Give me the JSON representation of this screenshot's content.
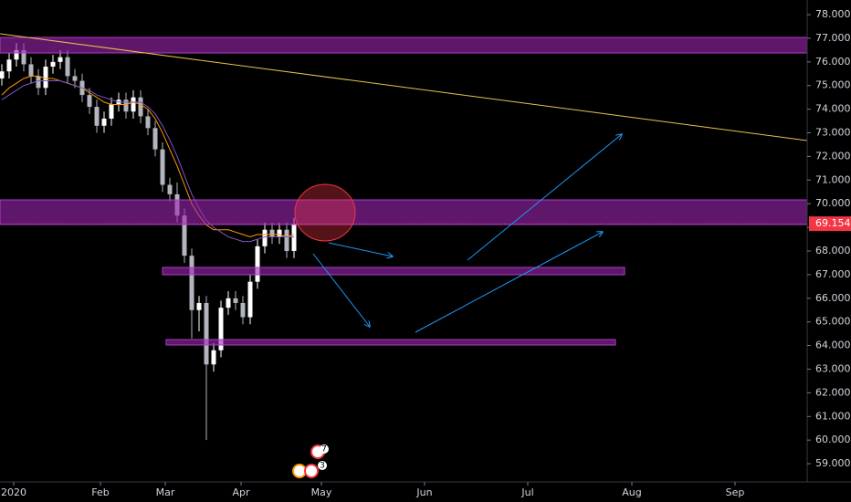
{
  "chart_data": {
    "type": "candlestick",
    "x": [
      0.5,
      2.5,
      4.5,
      6.5,
      8.5,
      10.5,
      12.5,
      14.5,
      16.5,
      18.5,
      20.5,
      22.5,
      24.5,
      26.5,
      28.5,
      30.5,
      32.5,
      34.5,
      36.5,
      38.5,
      40.5,
      42.5,
      44.5,
      46.5,
      48.5,
      50.5,
      52.5,
      54.5,
      56.5,
      58.5,
      60.5,
      62.5,
      64.5,
      66.5,
      68.5,
      70.5,
      72.5,
      74.5,
      76.5,
      78.5,
      80.5
    ],
    "open": [
      75.3,
      75.6,
      76.1,
      76.5,
      75.9,
      75.4,
      74.9,
      75.8,
      76.0,
      76.2,
      75.4,
      75.2,
      74.6,
      74.1,
      73.3,
      73.6,
      74.2,
      74.4,
      73.9,
      74.5,
      73.7,
      73.2,
      72.3,
      70.8,
      70.4,
      69.5,
      67.8,
      65.5,
      65.8,
      63.2,
      63.8,
      65.6,
      66.0,
      65.8,
      65.2,
      66.7,
      68.2,
      68.9,
      68.6,
      68.9,
      68.0
    ],
    "high": [
      75.9,
      76.4,
      76.8,
      76.8,
      76.2,
      75.7,
      76.1,
      76.3,
      76.5,
      76.5,
      75.7,
      75.5,
      74.9,
      74.4,
      73.9,
      74.5,
      74.7,
      74.7,
      74.8,
      74.8,
      74.0,
      73.5,
      72.6,
      71.1,
      70.9,
      69.8,
      68.1,
      66.1,
      66.1,
      64.1,
      65.9,
      66.3,
      66.3,
      66.1,
      67.0,
      68.5,
      69.2,
      69.2,
      69.2,
      69.2,
      69.4
    ],
    "low": [
      75.0,
      75.3,
      75.8,
      75.6,
      75.1,
      74.6,
      74.6,
      75.5,
      75.7,
      75.1,
      74.9,
      74.3,
      73.8,
      73.0,
      73.0,
      73.3,
      73.9,
      73.6,
      73.6,
      73.4,
      72.9,
      72.0,
      70.5,
      70.1,
      69.2,
      67.5,
      64.3,
      64.6,
      60.0,
      62.9,
      63.5,
      65.3,
      65.5,
      64.9,
      64.9,
      66.4,
      67.9,
      68.3,
      68.3,
      67.7,
      67.7
    ],
    "close": [
      75.6,
      76.1,
      76.5,
      75.9,
      75.4,
      74.9,
      75.8,
      76.0,
      76.2,
      75.4,
      75.2,
      74.6,
      74.1,
      73.3,
      73.6,
      74.2,
      74.4,
      73.9,
      74.5,
      73.7,
      73.2,
      72.3,
      70.8,
      70.4,
      69.5,
      67.8,
      65.5,
      65.8,
      63.2,
      63.8,
      65.6,
      66.0,
      65.8,
      65.2,
      66.7,
      68.2,
      68.9,
      68.6,
      68.9,
      68.0,
      69.154
    ],
    "up_color": "#ffffff",
    "down_color": "#b2b5be",
    "overlays": [
      {
        "color": "#ff9800",
        "values": [
          74.6,
          74.9,
          75.1,
          75.3,
          75.4,
          75.4,
          75.3,
          75.3,
          75.2,
          75.1,
          75.0,
          74.9,
          74.7,
          74.5,
          74.3,
          74.2,
          74.2,
          74.2,
          74.3,
          74.2,
          74.0,
          73.6,
          73.0,
          72.3,
          71.6,
          70.8,
          70.0,
          69.5,
          69.1,
          68.9,
          68.9,
          68.9,
          68.8,
          68.7,
          68.6,
          68.7,
          68.7,
          68.7,
          68.7,
          68.6,
          68.7
        ]
      },
      {
        "color": "#7e57c2",
        "values": [
          74.4,
          74.6,
          74.8,
          75.0,
          75.1,
          75.2,
          75.2,
          75.2,
          75.2,
          75.1,
          75.0,
          74.9,
          74.8,
          74.6,
          74.5,
          74.4,
          74.3,
          74.3,
          74.3,
          74.3,
          74.1,
          73.8,
          73.3,
          72.7,
          72.0,
          71.2,
          70.4,
          69.8,
          69.3,
          69.0,
          68.8,
          68.6,
          68.5,
          68.4,
          68.4,
          68.5,
          68.6,
          68.6,
          68.6,
          68.6,
          68.6
        ]
      }
    ],
    "last_price": 69.154,
    "last_price_color": "#f23645",
    "xlim": [
      0,
      221
    ],
    "ylim": [
      58.23,
      78.62
    ],
    "xticks": [
      {
        "value": 3.75,
        "label": "2020"
      },
      {
        "value": 27.5,
        "label": "Feb"
      },
      {
        "value": 45.25,
        "label": "Mar"
      },
      {
        "value": 66,
        "label": "Apr"
      },
      {
        "value": 88,
        "label": "May"
      },
      {
        "value": 116.25,
        "label": "Jun"
      },
      {
        "value": 144.5,
        "label": "Jul"
      },
      {
        "value": 173,
        "label": "Aug"
      },
      {
        "value": 201.25,
        "label": "Sep"
      }
    ],
    "yticks": [
      {
        "value": 59,
        "label": "59.000"
      },
      {
        "value": 60,
        "label": "60.000"
      },
      {
        "value": 61,
        "label": "61.000"
      },
      {
        "value": 62,
        "label": "62.000"
      },
      {
        "value": 63,
        "label": "63.000"
      },
      {
        "value": 64,
        "label": "64.000"
      },
      {
        "value": 65,
        "label": "65.000"
      },
      {
        "value": 66,
        "label": "66.000"
      },
      {
        "value": 67,
        "label": "67.000"
      },
      {
        "value": 68,
        "label": "68.000"
      },
      {
        "value": 69,
        "label": "69.000"
      },
      {
        "value": 70,
        "label": "70.000"
      },
      {
        "value": 71,
        "label": "71.000"
      },
      {
        "value": 72,
        "label": "72.000"
      },
      {
        "value": 73,
        "label": "73.000"
      },
      {
        "value": 74,
        "label": "74.000"
      },
      {
        "value": 75,
        "label": "75.000"
      },
      {
        "value": 76,
        "label": "76.000"
      },
      {
        "value": 77,
        "label": "77.000"
      },
      {
        "value": 78,
        "label": "78.000"
      }
    ],
    "event_badges": [
      "7",
      "3"
    ]
  }
}
